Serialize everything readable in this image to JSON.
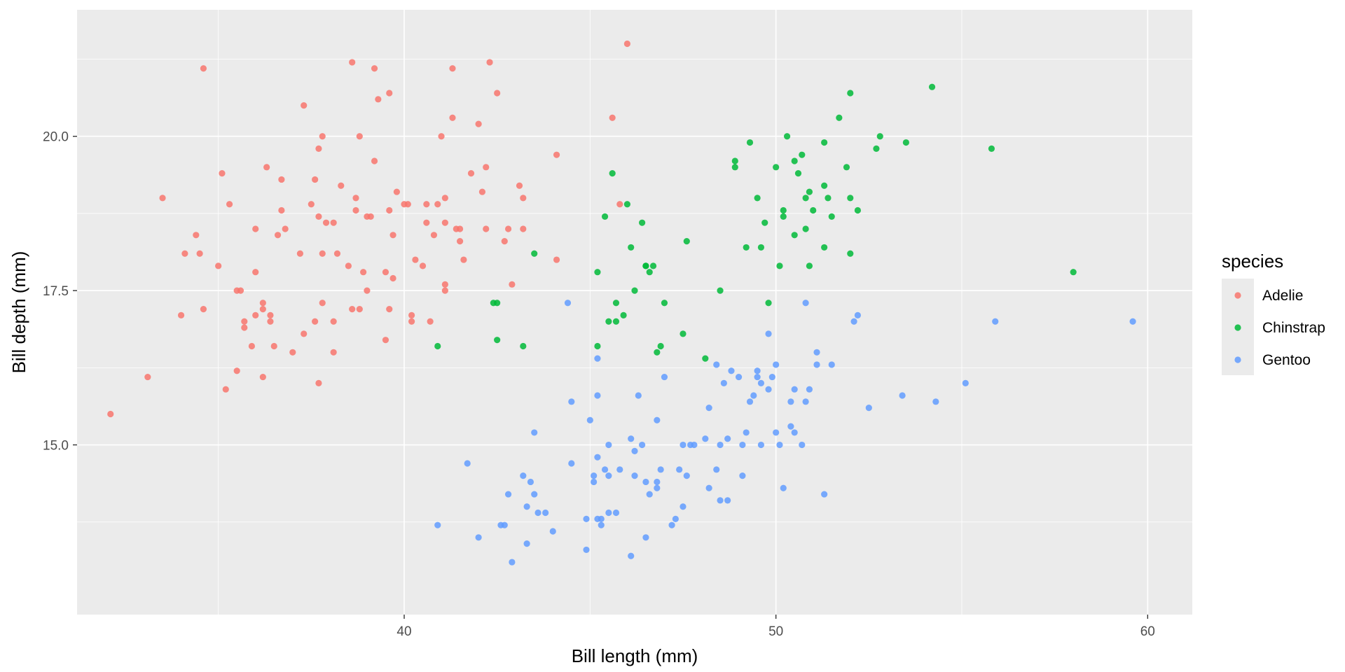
{
  "chart_data": {
    "type": "scatter",
    "xlabel": "Bill length (mm)",
    "ylabel": "Bill depth (mm)",
    "xlim": [
      31.2,
      61.2
    ],
    "ylim": [
      12.25,
      22.05
    ],
    "x_ticks": [
      40,
      50,
      60
    ],
    "x_tick_labels": [
      "40",
      "50",
      "60"
    ],
    "y_ticks": [
      15,
      17.5,
      20
    ],
    "y_tick_labels": [
      "15.0",
      "17.5",
      "20.0"
    ],
    "grid": true,
    "legend": {
      "title": "species",
      "position": "right"
    },
    "series": [
      {
        "name": "Adelie",
        "color": "#F8766D",
        "points": [
          [
            32.1,
            15.5
          ],
          [
            33.1,
            16.1
          ],
          [
            33.5,
            19.0
          ],
          [
            34.0,
            17.1
          ],
          [
            34.1,
            18.1
          ],
          [
            34.4,
            18.4
          ],
          [
            34.5,
            18.1
          ],
          [
            34.6,
            21.1
          ],
          [
            34.6,
            17.2
          ],
          [
            35.0,
            17.9
          ],
          [
            35.1,
            19.4
          ],
          [
            35.2,
            15.9
          ],
          [
            35.3,
            18.9
          ],
          [
            35.5,
            16.2
          ],
          [
            35.5,
            17.5
          ],
          [
            35.6,
            17.5
          ],
          [
            35.7,
            16.9
          ],
          [
            35.7,
            17.0
          ],
          [
            35.9,
            16.6
          ],
          [
            36.0,
            17.1
          ],
          [
            36.0,
            17.8
          ],
          [
            36.0,
            18.5
          ],
          [
            36.2,
            16.1
          ],
          [
            36.2,
            17.2
          ],
          [
            36.3,
            19.5
          ],
          [
            36.4,
            17.0
          ],
          [
            36.4,
            17.1
          ],
          [
            36.5,
            16.6
          ],
          [
            36.6,
            18.4
          ],
          [
            36.7,
            18.8
          ],
          [
            36.8,
            18.5
          ],
          [
            37.0,
            16.5
          ],
          [
            37.2,
            18.1
          ],
          [
            37.3,
            16.8
          ],
          [
            37.3,
            20.5
          ],
          [
            37.5,
            18.9
          ],
          [
            37.6,
            17.0
          ],
          [
            37.7,
            18.7
          ],
          [
            37.7,
            19.8
          ],
          [
            37.8,
            17.3
          ],
          [
            37.8,
            18.1
          ],
          [
            37.8,
            20.0
          ],
          [
            37.9,
            18.6
          ],
          [
            38.1,
            17.0
          ],
          [
            38.1,
            18.6
          ],
          [
            38.2,
            18.1
          ],
          [
            38.3,
            19.2
          ],
          [
            38.5,
            17.9
          ],
          [
            38.6,
            17.2
          ],
          [
            38.6,
            21.2
          ],
          [
            38.7,
            19.0
          ],
          [
            38.8,
            17.2
          ],
          [
            38.8,
            20.0
          ],
          [
            38.9,
            17.8
          ],
          [
            39.0,
            17.5
          ],
          [
            39.0,
            18.7
          ],
          [
            39.1,
            18.7
          ],
          [
            39.2,
            19.6
          ],
          [
            39.2,
            21.1
          ],
          [
            39.3,
            20.6
          ],
          [
            39.5,
            16.7
          ],
          [
            39.5,
            17.8
          ],
          [
            39.6,
            18.8
          ],
          [
            39.6,
            20.7
          ],
          [
            39.7,
            18.4
          ],
          [
            39.8,
            19.1
          ],
          [
            40.2,
            17.0
          ],
          [
            40.2,
            17.1
          ],
          [
            40.3,
            18.0
          ],
          [
            40.5,
            17.9
          ],
          [
            40.6,
            18.6
          ],
          [
            40.7,
            17.0
          ],
          [
            40.8,
            18.4
          ],
          [
            41.0,
            20.0
          ],
          [
            41.1,
            17.6
          ],
          [
            41.1,
            18.6
          ],
          [
            41.1,
            19.0
          ],
          [
            41.3,
            20.3
          ],
          [
            41.3,
            21.1
          ],
          [
            41.4,
            18.5
          ],
          [
            41.5,
            18.3
          ],
          [
            41.6,
            18.0
          ],
          [
            41.8,
            19.4
          ],
          [
            42.0,
            20.2
          ],
          [
            42.1,
            19.1
          ],
          [
            42.2,
            18.5
          ],
          [
            42.2,
            19.5
          ],
          [
            42.3,
            21.2
          ],
          [
            42.5,
            20.7
          ],
          [
            42.7,
            18.3
          ],
          [
            42.8,
            18.5
          ],
          [
            42.9,
            17.6
          ],
          [
            43.1,
            19.2
          ],
          [
            43.2,
            18.5
          ],
          [
            43.2,
            19.0
          ],
          [
            44.1,
            19.7
          ],
          [
            44.1,
            18.0
          ],
          [
            45.6,
            20.3
          ],
          [
            45.8,
            18.9
          ],
          [
            46.0,
            21.5
          ],
          [
            36.2,
            17.3
          ],
          [
            38.7,
            18.8
          ],
          [
            39.7,
            17.7
          ],
          [
            40.9,
            18.9
          ],
          [
            41.5,
            18.5
          ],
          [
            37.6,
            19.3
          ],
          [
            40.6,
            18.9
          ],
          [
            39.6,
            17.2
          ],
          [
            38.1,
            16.5
          ],
          [
            37.7,
            16.0
          ],
          [
            41.1,
            17.5
          ],
          [
            40.0,
            18.9
          ],
          [
            36.7,
            19.3
          ],
          [
            40.1,
            18.9
          ]
        ]
      },
      {
        "name": "Chinstrap",
        "color": "#00BA38",
        "points": [
          [
            40.9,
            16.6
          ],
          [
            42.4,
            17.3
          ],
          [
            42.5,
            16.7
          ],
          [
            42.5,
            17.3
          ],
          [
            43.2,
            16.6
          ],
          [
            43.5,
            18.1
          ],
          [
            45.2,
            16.6
          ],
          [
            45.2,
            17.8
          ],
          [
            45.4,
            18.7
          ],
          [
            45.5,
            17.0
          ],
          [
            45.6,
            19.4
          ],
          [
            45.7,
            17.3
          ],
          [
            45.7,
            17.0
          ],
          [
            45.9,
            17.1
          ],
          [
            46.0,
            18.9
          ],
          [
            46.1,
            18.2
          ],
          [
            46.2,
            17.5
          ],
          [
            46.4,
            18.6
          ],
          [
            46.5,
            17.9
          ],
          [
            46.6,
            17.8
          ],
          [
            46.7,
            17.9
          ],
          [
            46.8,
            16.5
          ],
          [
            46.9,
            16.6
          ],
          [
            47.0,
            17.3
          ],
          [
            47.5,
            16.8
          ],
          [
            47.6,
            18.3
          ],
          [
            48.1,
            16.4
          ],
          [
            48.5,
            17.5
          ],
          [
            48.9,
            19.5
          ],
          [
            49.2,
            18.2
          ],
          [
            49.3,
            19.9
          ],
          [
            49.5,
            19.0
          ],
          [
            49.6,
            18.2
          ],
          [
            49.7,
            18.6
          ],
          [
            49.8,
            17.3
          ],
          [
            50.0,
            19.5
          ],
          [
            50.1,
            17.9
          ],
          [
            50.2,
            18.8
          ],
          [
            50.3,
            20.0
          ],
          [
            50.5,
            18.4
          ],
          [
            50.5,
            19.6
          ],
          [
            50.6,
            19.4
          ],
          [
            50.7,
            19.7
          ],
          [
            50.8,
            19.0
          ],
          [
            50.8,
            18.5
          ],
          [
            50.9,
            17.9
          ],
          [
            51.0,
            18.8
          ],
          [
            51.3,
            19.9
          ],
          [
            51.4,
            19.0
          ],
          [
            51.5,
            18.7
          ],
          [
            51.7,
            20.3
          ],
          [
            51.9,
            19.5
          ],
          [
            52.0,
            19.0
          ],
          [
            52.0,
            20.7
          ],
          [
            52.2,
            18.8
          ],
          [
            52.7,
            19.8
          ],
          [
            52.8,
            20.0
          ],
          [
            53.5,
            19.9
          ],
          [
            54.2,
            20.8
          ],
          [
            55.8,
            19.8
          ],
          [
            58.0,
            17.8
          ],
          [
            48.9,
            19.6
          ],
          [
            51.3,
            18.2
          ],
          [
            50.9,
            19.1
          ],
          [
            46.5,
            17.9
          ],
          [
            50.2,
            18.7
          ],
          [
            51.3,
            19.2
          ],
          [
            52.0,
            18.1
          ]
        ]
      },
      {
        "name": "Gentoo",
        "color": "#619CFF",
        "points": [
          [
            40.9,
            13.7
          ],
          [
            41.7,
            14.7
          ],
          [
            42.0,
            13.5
          ],
          [
            42.6,
            13.7
          ],
          [
            42.7,
            13.7
          ],
          [
            42.8,
            14.2
          ],
          [
            42.9,
            13.1
          ],
          [
            43.2,
            14.5
          ],
          [
            43.3,
            14.0
          ],
          [
            43.3,
            13.4
          ],
          [
            43.4,
            14.4
          ],
          [
            43.5,
            14.2
          ],
          [
            43.5,
            15.2
          ],
          [
            43.6,
            13.9
          ],
          [
            43.8,
            13.9
          ],
          [
            44.0,
            13.6
          ],
          [
            44.4,
            17.3
          ],
          [
            44.5,
            14.7
          ],
          [
            44.5,
            15.7
          ],
          [
            44.9,
            13.3
          ],
          [
            44.9,
            13.8
          ],
          [
            45.0,
            15.4
          ],
          [
            45.1,
            14.5
          ],
          [
            45.1,
            14.4
          ],
          [
            45.2,
            13.8
          ],
          [
            45.2,
            14.8
          ],
          [
            45.2,
            15.8
          ],
          [
            45.2,
            16.4
          ],
          [
            45.3,
            13.7
          ],
          [
            45.3,
            13.8
          ],
          [
            45.4,
            14.6
          ],
          [
            45.5,
            13.9
          ],
          [
            45.5,
            15.0
          ],
          [
            45.7,
            13.9
          ],
          [
            45.8,
            14.6
          ],
          [
            46.1,
            13.2
          ],
          [
            46.1,
            15.1
          ],
          [
            46.2,
            14.5
          ],
          [
            46.2,
            14.9
          ],
          [
            46.3,
            15.8
          ],
          [
            46.4,
            15.0
          ],
          [
            46.5,
            13.5
          ],
          [
            46.6,
            14.2
          ],
          [
            46.8,
            14.3
          ],
          [
            46.8,
            15.4
          ],
          [
            46.9,
            14.6
          ],
          [
            47.2,
            13.7
          ],
          [
            47.3,
            13.8
          ],
          [
            47.4,
            14.6
          ],
          [
            47.5,
            14.0
          ],
          [
            47.5,
            15.0
          ],
          [
            47.6,
            14.5
          ],
          [
            47.7,
            15.0
          ],
          [
            47.8,
            15.0
          ],
          [
            48.1,
            15.1
          ],
          [
            48.2,
            14.3
          ],
          [
            48.2,
            15.6
          ],
          [
            48.4,
            14.6
          ],
          [
            48.4,
            16.3
          ],
          [
            48.5,
            14.1
          ],
          [
            48.5,
            15.0
          ],
          [
            48.6,
            16.0
          ],
          [
            48.7,
            14.1
          ],
          [
            48.7,
            15.1
          ],
          [
            48.8,
            16.2
          ],
          [
            49.0,
            16.1
          ],
          [
            49.1,
            14.5
          ],
          [
            49.1,
            15.0
          ],
          [
            49.2,
            15.2
          ],
          [
            49.3,
            15.7
          ],
          [
            49.4,
            15.8
          ],
          [
            49.5,
            16.1
          ],
          [
            49.5,
            16.2
          ],
          [
            49.6,
            15.0
          ],
          [
            49.6,
            16.0
          ],
          [
            49.8,
            15.9
          ],
          [
            49.8,
            16.8
          ],
          [
            49.9,
            16.1
          ],
          [
            50.0,
            15.2
          ],
          [
            50.0,
            16.3
          ],
          [
            50.1,
            15.0
          ],
          [
            50.2,
            14.3
          ],
          [
            50.4,
            15.3
          ],
          [
            50.4,
            15.7
          ],
          [
            50.5,
            15.2
          ],
          [
            50.5,
            15.9
          ],
          [
            50.7,
            15.0
          ],
          [
            50.8,
            15.7
          ],
          [
            50.8,
            17.3
          ],
          [
            51.1,
            16.3
          ],
          [
            51.1,
            16.5
          ],
          [
            51.3,
            14.2
          ],
          [
            51.5,
            16.3
          ],
          [
            52.1,
            17.0
          ],
          [
            52.2,
            17.1
          ],
          [
            52.5,
            15.6
          ],
          [
            53.4,
            15.8
          ],
          [
            54.3,
            15.7
          ],
          [
            55.1,
            16.0
          ],
          [
            55.9,
            17.0
          ],
          [
            59.6,
            17.0
          ],
          [
            46.5,
            14.4
          ],
          [
            47.0,
            16.1
          ],
          [
            45.5,
            14.5
          ],
          [
            46.8,
            14.4
          ],
          [
            50.9,
            15.9
          ]
        ]
      }
    ]
  }
}
